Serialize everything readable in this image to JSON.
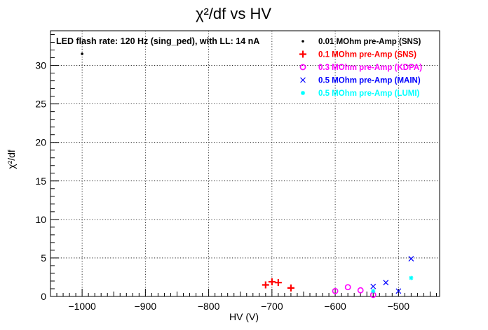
{
  "chart_data": {
    "type": "scatter",
    "title": "χ²/df vs HV",
    "xlabel": "HV (V)",
    "ylabel": "χ²/df",
    "xlim": [
      -1050,
      -435
    ],
    "ylim": [
      0,
      34.5
    ],
    "xticks": [
      -1000,
      -900,
      -800,
      -700,
      -600,
      -500
    ],
    "yticks": [
      0,
      5,
      10,
      15,
      20,
      25,
      30
    ],
    "grid": true,
    "annotation": "LED flash rate: 120 Hz  (sing_ped), with LL: 14 nA",
    "legend_position": "top-right",
    "series": [
      {
        "name": "0.01 MOhm pre-Amp (SNS)",
        "color": "#000000",
        "marker": "dot",
        "points": [
          [
            -1000,
            31.5
          ]
        ]
      },
      {
        "name": "0.1 MOhm pre-Amp (SNS)",
        "color": "#ff0000",
        "marker": "plus",
        "points": [
          [
            -710,
            1.5
          ],
          [
            -700,
            1.9
          ],
          [
            -690,
            1.8
          ],
          [
            -670,
            1.1
          ]
        ]
      },
      {
        "name": "0.3 MOhm pre-Amp (KDPA)",
        "color": "#ff00ff",
        "marker": "circle",
        "points": [
          [
            -600,
            0.7
          ],
          [
            -580,
            1.2
          ],
          [
            -560,
            0.8
          ],
          [
            -540,
            0.2
          ]
        ]
      },
      {
        "name": "0.5 MOhm pre-Amp (MAIN)",
        "color": "#0000ff",
        "marker": "cross",
        "points": [
          [
            -540,
            1.3
          ],
          [
            -520,
            1.8
          ],
          [
            -500,
            0.7
          ],
          [
            -480,
            4.9
          ]
        ]
      },
      {
        "name": "0.5 MOhm pre-Amp (LUMI)",
        "color": "#00ffff",
        "marker": "star",
        "points": [
          [
            -540,
            0.7
          ],
          [
            -480,
            2.4
          ]
        ]
      }
    ]
  }
}
